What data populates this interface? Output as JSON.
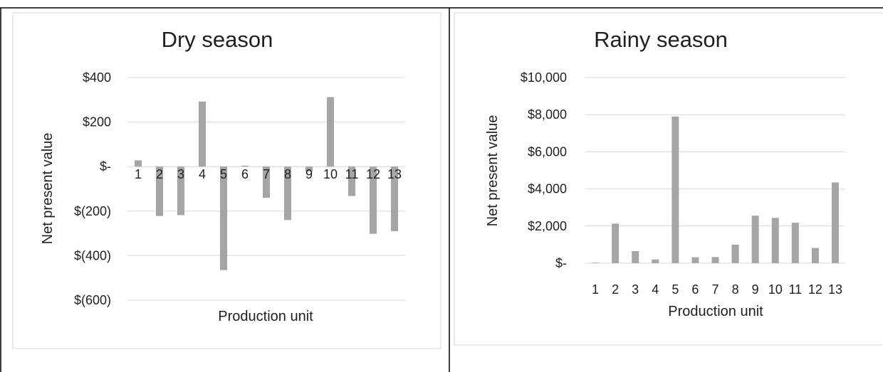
{
  "chart_data": [
    {
      "type": "bar",
      "title": "Dry season",
      "xlabel": "Production unit",
      "ylabel": "Net present value",
      "categories": [
        "1",
        "2",
        "3",
        "4",
        "5",
        "6",
        "7",
        "8",
        "9",
        "10",
        "11",
        "12",
        "13"
      ],
      "values": [
        28,
        -222,
        -218,
        292,
        -465,
        4,
        -140,
        -240,
        -22,
        312,
        -132,
        -302,
        -290
      ],
      "ylim": [
        -600,
        400
      ],
      "yticks": [
        400,
        200,
        0,
        -200,
        -400,
        -600
      ],
      "ytick_labels": [
        "$400",
        "$200",
        "$-",
        "$(200)",
        "$(400)",
        "$(600)"
      ],
      "grid": true,
      "color": "#a5a5a5"
    },
    {
      "type": "bar",
      "title": "Rainy season",
      "xlabel": "Production unit",
      "ylabel": "Net present value",
      "categories": [
        "1",
        "2",
        "3",
        "4",
        "5",
        "6",
        "7",
        "8",
        "9",
        "10",
        "11",
        "12",
        "13"
      ],
      "values": [
        30,
        2130,
        650,
        200,
        7900,
        320,
        330,
        1000,
        2560,
        2440,
        2180,
        820,
        4350
      ],
      "ylim": [
        0,
        10000
      ],
      "yticks": [
        10000,
        8000,
        6000,
        4000,
        2000,
        0
      ],
      "ytick_labels": [
        "$10,000",
        "$8,000",
        "$6,000",
        "$4,000",
        "$2,000",
        "$-"
      ],
      "grid": true,
      "color": "#a5a5a5"
    }
  ]
}
